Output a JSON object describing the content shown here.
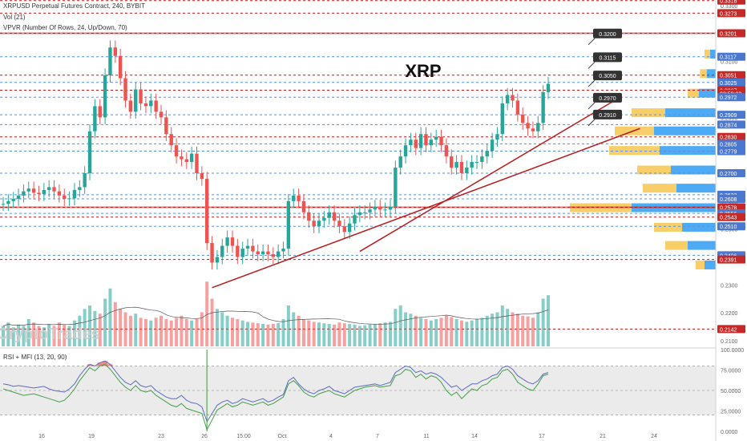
{
  "header": {
    "symbol_line": "XRPUSD Perpetual Futures Contract, 240, BYBIT",
    "vol_line": "Vol (21)",
    "vpvr_line": "VPVR (Number Of Rows, 24, Up/Down, 70)",
    "rsi_line": "RSI + MFI (13, 20, 90)"
  },
  "overlay": {
    "title": "XRP",
    "watermark": "CryptoTrades"
  },
  "colors": {
    "up": "#26a69a",
    "down": "#ef5350",
    "red_line": "#b71c1c",
    "blue_line": "#5b8fd9",
    "vp_up": "#2196f3",
    "vp_down": "#f5c242",
    "rsi": "#5c6bc0",
    "mfi": "#43a047",
    "badge_red": "#c62828",
    "badge_blue": "#4a78d0"
  },
  "chart_data": {
    "type": "candlestick",
    "ylim": [
      0.208,
      0.332
    ],
    "x_ticks": [
      "16",
      "19",
      "23",
      "26",
      "15:00",
      "Oct",
      "4",
      "7",
      "11",
      "14",
      "17",
      "21",
      "24"
    ],
    "price_axis_ticks": [
      "0.3300",
      "0.3200",
      "0.3100",
      "0.3000",
      "0.2900",
      "0.2800",
      "0.2700",
      "0.2600",
      "0.2500",
      "0.2400",
      "0.2300",
      "0.2200",
      "0.2100"
    ],
    "volume_axis_labels": [
      "0.2300",
      "0.2200",
      "0.2100"
    ],
    "osc_ticks": [
      "100.0000",
      "75.0000",
      "50.0000",
      "25.0000",
      "0.0000"
    ],
    "osc_levels": [
      80,
      50,
      20
    ],
    "closes": [
      0.259,
      0.26,
      0.2608,
      0.262,
      0.2635,
      0.2645,
      0.263,
      0.2625,
      0.264,
      0.265,
      0.2635,
      0.262,
      0.2608,
      0.261,
      0.264,
      0.265,
      0.27,
      0.285,
      0.294,
      0.29,
      0.305,
      0.315,
      0.312,
      0.304,
      0.296,
      0.292,
      0.3,
      0.295,
      0.294,
      0.296,
      0.292,
      0.29,
      0.284,
      0.28,
      0.276,
      0.275,
      0.274,
      0.277,
      0.27,
      0.268,
      0.245,
      0.238,
      0.24,
      0.244,
      0.247,
      0.244,
      0.24,
      0.243,
      0.244,
      0.242,
      0.241,
      0.242,
      0.241,
      0.24,
      0.242,
      0.243,
      0.26,
      0.262,
      0.26,
      0.256,
      0.253,
      0.251,
      0.253,
      0.254,
      0.256,
      0.253,
      0.251,
      0.249,
      0.252,
      0.255,
      0.256,
      0.256,
      0.257,
      0.258,
      0.257,
      0.257,
      0.258,
      0.272,
      0.276,
      0.28,
      0.282,
      0.279,
      0.284,
      0.28,
      0.282,
      0.283,
      0.28,
      0.276,
      0.272,
      0.274,
      0.27,
      0.272,
      0.274,
      0.274,
      0.276,
      0.278,
      0.282,
      0.284,
      0.295,
      0.298,
      0.296,
      0.291,
      0.288,
      0.286,
      0.285,
      0.288,
      0.299,
      0.302
    ],
    "volumes": [
      0.3,
      0.35,
      0.28,
      0.32,
      0.3,
      0.4,
      0.35,
      0.3,
      0.28,
      0.33,
      0.3,
      0.35,
      0.32,
      0.3,
      0.38,
      0.45,
      0.55,
      0.6,
      0.52,
      0.48,
      0.7,
      0.85,
      0.65,
      0.55,
      0.5,
      0.45,
      0.48,
      0.42,
      0.4,
      0.38,
      0.42,
      0.45,
      0.4,
      0.38,
      0.42,
      0.45,
      0.4,
      0.38,
      0.4,
      0.5,
      0.95,
      0.7,
      0.55,
      0.5,
      0.45,
      0.42,
      0.4,
      0.38,
      0.36,
      0.35,
      0.34,
      0.33,
      0.32,
      0.33,
      0.34,
      0.4,
      0.6,
      0.5,
      0.45,
      0.4,
      0.38,
      0.36,
      0.35,
      0.34,
      0.33,
      0.32,
      0.35,
      0.34,
      0.33,
      0.32,
      0.3,
      0.31,
      0.32,
      0.33,
      0.34,
      0.35,
      0.36,
      0.55,
      0.6,
      0.5,
      0.48,
      0.45,
      0.42,
      0.4,
      0.38,
      0.4,
      0.42,
      0.45,
      0.43,
      0.4,
      0.38,
      0.36,
      0.38,
      0.4,
      0.42,
      0.45,
      0.48,
      0.5,
      0.6,
      0.55,
      0.5,
      0.48,
      0.45,
      0.44,
      0.42,
      0.5,
      0.7,
      0.75
    ],
    "trendlines": [
      {
        "from": [
          41,
          0.229
        ],
        "to": [
          125,
          0.286
        ]
      },
      {
        "from": [
          70,
          0.242
        ],
        "to": [
          120,
          0.296
        ]
      }
    ],
    "red_levels": [
      0.3318,
      0.3273,
      0.3201,
      0.3051,
      0.2997,
      0.283,
      0.2578,
      0.2543,
      0.2391,
      0.2142
    ],
    "blue_levels": [
      0.3117,
      0.3025,
      0.2972,
      0.2909,
      0.2874,
      0.2805,
      0.2779,
      0.27,
      0.2623,
      0.2608,
      0.2556,
      0.251,
      0.2406
    ],
    "axis_badges": [
      {
        "label": "0.3318",
        "price": 0.3318,
        "kind": "red"
      },
      {
        "label": "0.3273",
        "price": 0.3273,
        "kind": "red"
      },
      {
        "label": "0.3201",
        "price": 0.3201,
        "kind": "red"
      },
      {
        "label": "0.3117",
        "price": 0.3117,
        "kind": "blue"
      },
      {
        "label": "0.3051",
        "price": 0.3051,
        "kind": "red"
      },
      {
        "label": "0.3025",
        "price": 0.3025,
        "kind": "blue"
      },
      {
        "label": "0.2997",
        "price": 0.2997,
        "kind": "red"
      },
      {
        "label": "03:59:23",
        "price": 0.2985,
        "kind": "timer"
      },
      {
        "label": "0.2972",
        "price": 0.2972,
        "kind": "blue"
      },
      {
        "label": "0.2909",
        "price": 0.2909,
        "kind": "blue"
      },
      {
        "label": "0.2874",
        "price": 0.2874,
        "kind": "blue"
      },
      {
        "label": "0.2830",
        "price": 0.283,
        "kind": "red"
      },
      {
        "label": "0.2805",
        "price": 0.2805,
        "kind": "blue"
      },
      {
        "label": "0.2779",
        "price": 0.2779,
        "kind": "blue"
      },
      {
        "label": "0.2700",
        "price": 0.27,
        "kind": "blue"
      },
      {
        "label": "0.2623",
        "price": 0.2623,
        "kind": "blue"
      },
      {
        "label": "0.2608",
        "price": 0.2608,
        "kind": "blue"
      },
      {
        "label": "0.2578",
        "price": 0.2578,
        "kind": "red"
      },
      {
        "label": "0.2556",
        "price": 0.2556,
        "kind": "blue"
      },
      {
        "label": "0.2543",
        "price": 0.2543,
        "kind": "red"
      },
      {
        "label": "0.2510",
        "price": 0.251,
        "kind": "blue"
      },
      {
        "label": "0.2406",
        "price": 0.2406,
        "kind": "blue"
      },
      {
        "label": "0.2391",
        "price": 0.2391,
        "kind": "red"
      },
      {
        "label": "0.2142",
        "price": 0.2142,
        "kind": "red"
      }
    ],
    "callouts": [
      {
        "label": "0.3200",
        "price": 0.32
      },
      {
        "label": "0.3115",
        "price": 0.3115
      },
      {
        "label": "0.3050",
        "price": 0.305
      },
      {
        "label": "0.2970",
        "price": 0.297
      },
      {
        "label": "0.2910",
        "price": 0.291
      }
    ],
    "volume_profile": [
      {
        "price": 0.3125,
        "up": 0.05,
        "down": 0.05
      },
      {
        "price": 0.3055,
        "up": 0.08,
        "down": 0.06
      },
      {
        "price": 0.2985,
        "up": 0.15,
        "down": 0.1
      },
      {
        "price": 0.2915,
        "up": 0.45,
        "down": 0.3
      },
      {
        "price": 0.285,
        "up": 0.55,
        "down": 0.35
      },
      {
        "price": 0.278,
        "up": 0.5,
        "down": 0.45
      },
      {
        "price": 0.271,
        "up": 0.4,
        "down": 0.3
      },
      {
        "price": 0.2645,
        "up": 0.35,
        "down": 0.3
      },
      {
        "price": 0.2575,
        "up": 0.75,
        "down": 0.55
      },
      {
        "price": 0.2505,
        "up": 0.3,
        "down": 0.25
      },
      {
        "price": 0.244,
        "up": 0.25,
        "down": 0.2
      },
      {
        "price": 0.237,
        "up": 0.1,
        "down": 0.08
      }
    ],
    "rsi": [
      58,
      57,
      55,
      56,
      55,
      54,
      53,
      54,
      55,
      52,
      50,
      49,
      48,
      52,
      58,
      68,
      76,
      82,
      80,
      84,
      86,
      82,
      74,
      66,
      60,
      57,
      62,
      56,
      54,
      56,
      50,
      46,
      42,
      40,
      40,
      44,
      38,
      35,
      34,
      30,
      12,
      22,
      32,
      36,
      38,
      34,
      36,
      40,
      38,
      36,
      38,
      40,
      36,
      38,
      42,
      45,
      62,
      66,
      58,
      52,
      48,
      46,
      50,
      52,
      55,
      50,
      48,
      46,
      50,
      54,
      55,
      56,
      57,
      58,
      56,
      58,
      60,
      72,
      76,
      80,
      78,
      72,
      74,
      70,
      72,
      70,
      66,
      60,
      54,
      56,
      50,
      54,
      58,
      58,
      62,
      64,
      68,
      70,
      78,
      80,
      76,
      68,
      64,
      60,
      58,
      62,
      70,
      72
    ],
    "mfi": [
      52,
      50,
      48,
      46,
      44,
      45,
      46,
      44,
      42,
      40,
      38,
      36,
      38,
      44,
      52,
      62,
      70,
      78,
      74,
      80,
      82,
      76,
      68,
      60,
      54,
      50,
      56,
      50,
      48,
      50,
      44,
      40,
      36,
      32,
      30,
      34,
      28,
      26,
      24,
      22,
      2,
      14,
      26,
      30,
      34,
      30,
      32,
      36,
      34,
      32,
      34,
      36,
      32,
      34,
      38,
      42,
      58,
      62,
      56,
      48,
      44,
      42,
      46,
      48,
      50,
      46,
      44,
      42,
      46,
      50,
      52,
      54,
      55,
      56,
      54,
      55,
      56,
      68,
      70,
      76,
      74,
      66,
      70,
      64,
      68,
      66,
      60,
      50,
      44,
      48,
      40,
      46,
      52,
      50,
      56,
      58,
      64,
      66,
      74,
      76,
      70,
      60,
      56,
      52,
      50,
      58,
      68,
      70
    ]
  }
}
